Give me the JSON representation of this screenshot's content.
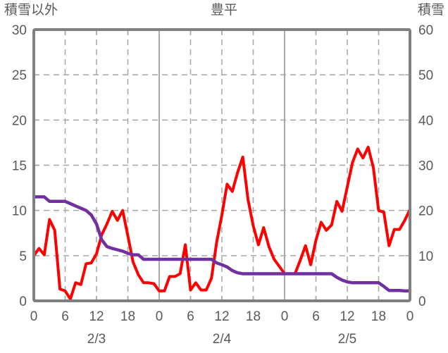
{
  "header": {
    "left_axis_title": "積雪以外",
    "title": "豊平",
    "right_axis_title": "積雪"
  },
  "chart_data": {
    "type": "line",
    "title": "豊平",
    "grid": true,
    "legend": "none",
    "x_axis": {
      "unit": "hour",
      "span_hours": 72,
      "tick_interval_hours": 6,
      "tick_labels": [
        "0",
        "6",
        "12",
        "18",
        "0",
        "6",
        "12",
        "18",
        "0",
        "6",
        "12",
        "18",
        "0"
      ],
      "date_labels": [
        "2/3",
        "2/4",
        "2/5"
      ],
      "date_label_hours": [
        12,
        36,
        60
      ]
    },
    "left_axis": {
      "title": "積雪以外",
      "min": 0,
      "max": 30,
      "tick_labels": [
        "0",
        "5",
        "10",
        "15",
        "20",
        "25",
        "30"
      ],
      "ticks": [
        0,
        5,
        10,
        15,
        20,
        25,
        30
      ]
    },
    "right_axis": {
      "title": "積雪",
      "min": 0,
      "max": 60,
      "tick_labels": [
        "0",
        "10",
        "20",
        "30",
        "40",
        "50",
        "60"
      ],
      "ticks": [
        0,
        10,
        20,
        30,
        40,
        50,
        60
      ]
    },
    "series": [
      {
        "name": "積雪以外",
        "axis": "left",
        "color": "#FF0000",
        "stroke_width": 4,
        "values": [
          5.0,
          5.8,
          5.1,
          9.0,
          7.8,
          1.3,
          1.1,
          0.2,
          2.0,
          1.8,
          4.1,
          4.2,
          5.2,
          7.3,
          8.5,
          9.9,
          8.9,
          10.0,
          7.2,
          4.3,
          2.9,
          2.0,
          2.0,
          1.9,
          1.1,
          1.1,
          2.7,
          2.7,
          3.0,
          6.2,
          1.2,
          2.0,
          1.2,
          1.2,
          2.5,
          6.5,
          9.5,
          12.9,
          12.1,
          14.2,
          15.9,
          11.2,
          8.3,
          6.2,
          8.1,
          6.0,
          4.6,
          3.8,
          3.0,
          3.0,
          3.0,
          4.5,
          6.1,
          4.0,
          6.7,
          8.7,
          7.8,
          8.4,
          11.0,
          9.9,
          12.6,
          15.3,
          16.8,
          15.8,
          17.0,
          14.7,
          10.0,
          9.8,
          6.1,
          7.9,
          7.9,
          8.9,
          10.1
        ]
      },
      {
        "name": "積雪",
        "axis": "right",
        "color": "#7030A0",
        "stroke_width": 4.5,
        "values": [
          23,
          23,
          23,
          22,
          22,
          22,
          22,
          21.5,
          21,
          20.5,
          20,
          19,
          17,
          13.5,
          12,
          11.6,
          11.3,
          11,
          10.5,
          10.2,
          10.2,
          9.2,
          9.2,
          9.2,
          9.2,
          9.2,
          9.2,
          9.2,
          9.2,
          9.2,
          9.2,
          9.2,
          9.2,
          9.2,
          9.2,
          8.4,
          8.0,
          7.5,
          6.7,
          6.2,
          6,
          6,
          6,
          6,
          6,
          6,
          6,
          6,
          6,
          6,
          6,
          6,
          6,
          6,
          6,
          6,
          6,
          6,
          5.2,
          4.6,
          4.2,
          4,
          4,
          4,
          4,
          4,
          4,
          3.2,
          2.3,
          2.3,
          2.3,
          2.2,
          2.2
        ]
      }
    ],
    "style": {
      "frame_color": "#808080",
      "grid_color": "#A6A6A6",
      "day_separator_color": "#8C8C8C",
      "text_color": "#595959",
      "background": "#FFFFFF"
    }
  }
}
